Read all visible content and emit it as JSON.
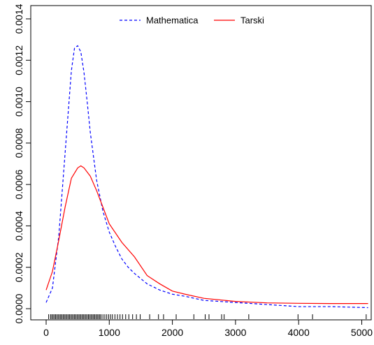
{
  "chart_data": {
    "type": "line",
    "title": "",
    "xlabel": "",
    "ylabel": "",
    "xlim": [
      0,
      5200
    ],
    "ylim": [
      0,
      0.0014
    ],
    "x_ticks": [
      0,
      1000,
      2000,
      3000,
      4000,
      5000
    ],
    "x_tick_labels": [
      "0",
      "1000",
      "2000",
      "3000",
      "4000",
      "5000"
    ],
    "y_ticks": [
      0,
      0.0002,
      0.0004,
      0.0006,
      0.0008,
      0.001,
      0.0012,
      0.0014
    ],
    "y_tick_labels": [
      "0.0000",
      "0.0002",
      "0.0004",
      "0.0006",
      "0.0008",
      "0.0010",
      "0.0012",
      "0.0014"
    ],
    "grid": false,
    "legend_position": "top-center",
    "series": [
      {
        "name": "Mathematica",
        "color": "#0000ff",
        "line_style": "dashed",
        "x": [
          0,
          100,
          200,
          300,
          400,
          450,
          500,
          550,
          600,
          650,
          700,
          800,
          900,
          1000,
          1100,
          1200,
          1300,
          1400,
          1600,
          1800,
          2000,
          2200,
          2500,
          3000,
          3500,
          4000,
          4500,
          5100
        ],
        "y": [
          3e-05,
          0.0001,
          0.00035,
          0.00075,
          0.00115,
          0.00126,
          0.00127,
          0.00124,
          0.00114,
          0.001,
          0.00085,
          0.00062,
          0.00047,
          0.00037,
          0.0003,
          0.00024,
          0.0002,
          0.00017,
          0.00012,
          9e-05,
          7e-05,
          6e-05,
          4e-05,
          3e-05,
          2e-05,
          1e-05,
          1e-05,
          5e-06
        ]
      },
      {
        "name": "Tarski",
        "color": "#ff0000",
        "line_style": "solid",
        "x": [
          0,
          100,
          200,
          300,
          400,
          500,
          550,
          600,
          700,
          800,
          900,
          1000,
          1200,
          1400,
          1600,
          1800,
          2000,
          2200,
          2500,
          3000,
          3500,
          4000,
          4500,
          5100
        ],
        "y": [
          9e-05,
          0.00018,
          0.00033,
          0.00049,
          0.00063,
          0.00068,
          0.00069,
          0.00068,
          0.00064,
          0.00057,
          0.00049,
          0.00041,
          0.00032,
          0.00025,
          0.00016,
          0.00012,
          8.5e-05,
          7e-05,
          5e-05,
          3.5e-05,
          2.8e-05,
          2.6e-05,
          2.5e-05,
          2.5e-05
        ]
      }
    ],
    "rug_x": [
      40,
      70,
      90,
      110,
      130,
      150,
      170,
      190,
      210,
      230,
      250,
      270,
      290,
      310,
      330,
      350,
      370,
      390,
      410,
      430,
      450,
      470,
      490,
      510,
      530,
      550,
      570,
      590,
      610,
      630,
      650,
      670,
      690,
      710,
      730,
      750,
      770,
      790,
      810,
      830,
      850,
      870,
      900,
      930,
      960,
      990,
      1020,
      1050,
      1090,
      1130,
      1170,
      1210,
      1260,
      1310,
      1370,
      1430,
      1490,
      1640,
      1780,
      1860,
      2060,
      2340,
      2520,
      2580,
      2780,
      2820,
      3210,
      3990,
      4220,
      5070
    ],
    "colors": {
      "axis": "#000000",
      "background": "#ffffff"
    }
  }
}
